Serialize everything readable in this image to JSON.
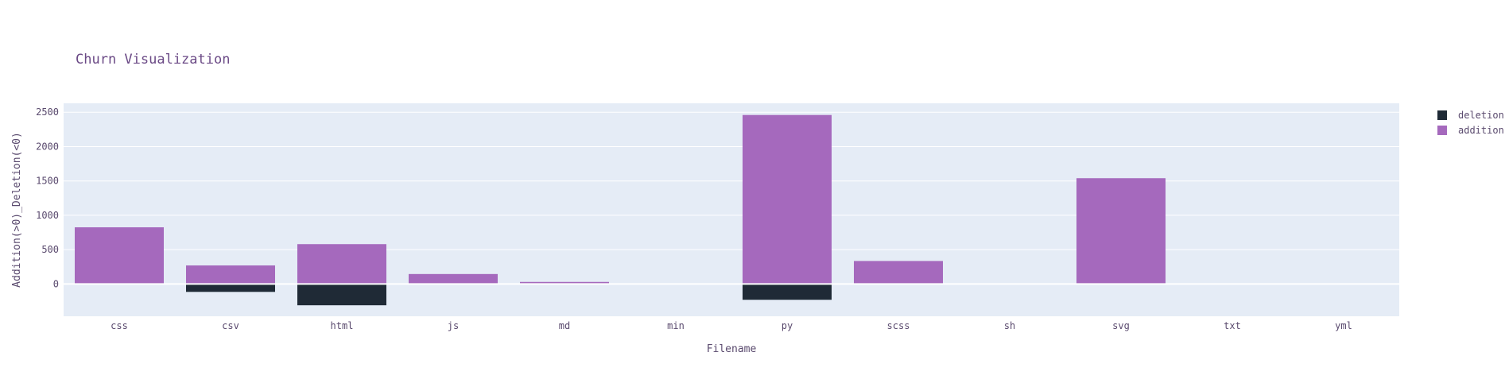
{
  "chart_data": {
    "type": "bar",
    "barmode": "relative",
    "title": "Churn Visualization",
    "xlabel": "Filename",
    "ylabel": "Addition(>0)_Deletion(<0)",
    "categories": [
      "css",
      "csv",
      "html",
      "js",
      "md",
      "min",
      "py",
      "scss",
      "sh",
      "svg",
      "txt",
      "yml"
    ],
    "series": [
      {
        "name": "deletions",
        "color": "#1f2a36",
        "values": [
          0,
          -115,
          -310,
          0,
          0,
          0,
          -230,
          0,
          0,
          0,
          0,
          0
        ]
      },
      {
        "name": "additions",
        "color": "#a569bd",
        "values": [
          825,
          270,
          580,
          145,
          30,
          0,
          2460,
          335,
          0,
          1540,
          5,
          0
        ]
      }
    ],
    "yticks": [
      0,
      500,
      1000,
      1500,
      2000,
      2500
    ],
    "ylim": [
      -470,
      2630
    ],
    "grid": true,
    "legend": "top-right",
    "background": "#e5ecf6"
  }
}
